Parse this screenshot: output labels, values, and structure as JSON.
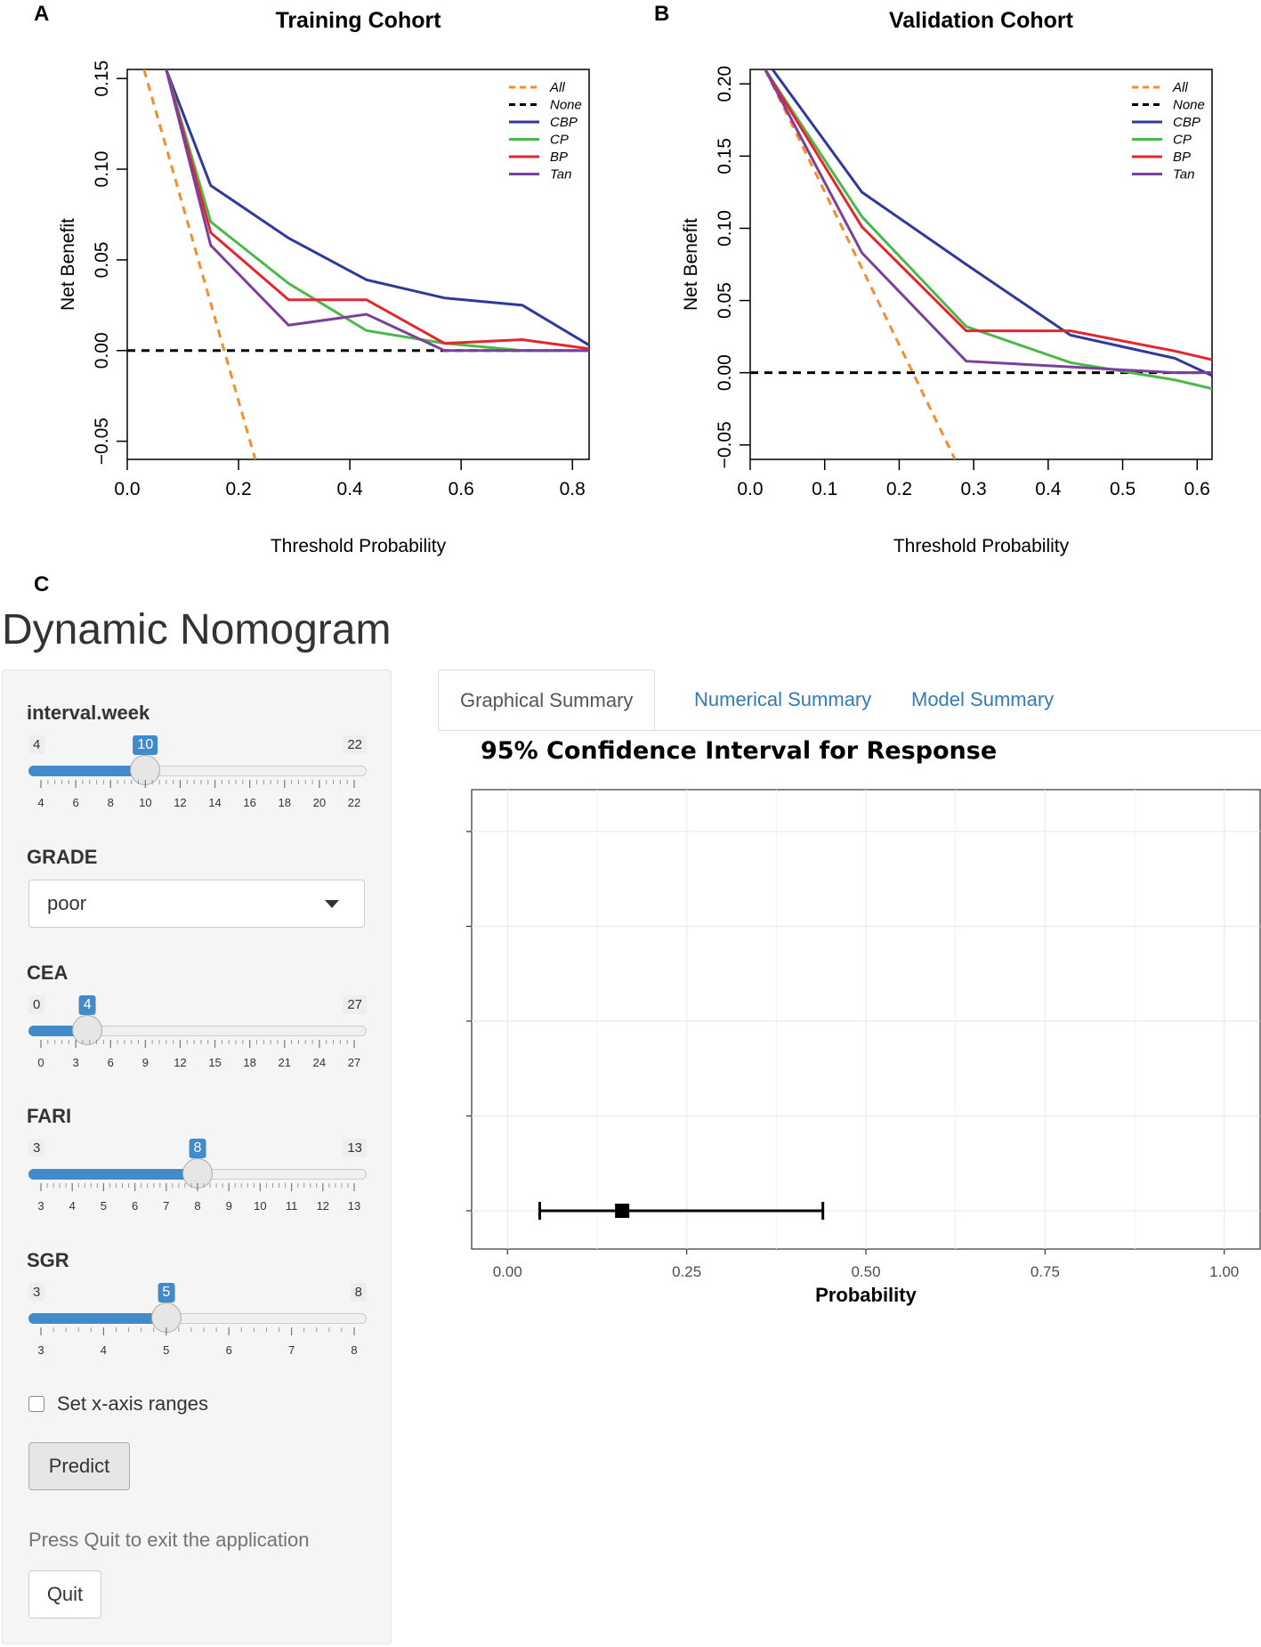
{
  "panel_letters": {
    "a": "A",
    "b": "B",
    "c": "C"
  },
  "dca_legend": [
    "All",
    "None",
    "CBP",
    "CP",
    "BP",
    "Tan"
  ],
  "colors": {
    "All": "#F28E2B",
    "None": "#000000",
    "CBP": "#2E3A9B",
    "CP": "#4CB848",
    "BP": "#E2282E",
    "Tan": "#7B3F9E"
  },
  "chart_data": [
    {
      "type": "line",
      "title": "Training Cohort",
      "xlabel": "Threshold Probability",
      "ylabel": "Net Benefit",
      "xlim": [
        0,
        0.83
      ],
      "ylim": [
        -0.06,
        0.155
      ],
      "xticks": [
        "0.0",
        "0.2",
        "0.4",
        "0.6",
        "0.8"
      ],
      "yticks": [
        "-0.05",
        "0.00",
        "0.05",
        "0.10",
        "0.15"
      ],
      "series": [
        {
          "name": "All",
          "dashed": true,
          "x": [
            0.03,
            0.23
          ],
          "y": [
            0.155,
            -0.06
          ]
        },
        {
          "name": "None",
          "dashed": true,
          "x": [
            0.0,
            0.83
          ],
          "y": [
            0.0,
            0.0
          ]
        },
        {
          "name": "CBP",
          "x": [
            0.07,
            0.15,
            0.29,
            0.43,
            0.57,
            0.71,
            0.83
          ],
          "y": [
            0.155,
            0.091,
            0.062,
            0.039,
            0.029,
            0.025,
            0.003
          ]
        },
        {
          "name": "CP",
          "x": [
            0.07,
            0.15,
            0.29,
            0.43,
            0.57,
            0.71,
            0.83
          ],
          "y": [
            0.155,
            0.071,
            0.037,
            0.011,
            0.004,
            0.0,
            0.0
          ]
        },
        {
          "name": "BP",
          "x": [
            0.07,
            0.15,
            0.29,
            0.43,
            0.57,
            0.71,
            0.83
          ],
          "y": [
            0.155,
            0.065,
            0.028,
            0.028,
            0.004,
            0.006,
            0.001
          ]
        },
        {
          "name": "Tan",
          "x": [
            0.07,
            0.15,
            0.29,
            0.43,
            0.57,
            0.71,
            0.83
          ],
          "y": [
            0.155,
            0.058,
            0.014,
            0.02,
            0.0,
            0.0,
            0.0
          ]
        }
      ]
    },
    {
      "type": "line",
      "title": "Validation Cohort",
      "xlabel": "Threshold Probability",
      "ylabel": "Net Benefit",
      "xlim": [
        0,
        0.62
      ],
      "ylim": [
        -0.06,
        0.21
      ],
      "xticks": [
        "0.0",
        "0.1",
        "0.2",
        "0.3",
        "0.4",
        "0.5",
        "0.6"
      ],
      "yticks": [
        "-0.05",
        "0.00",
        "0.05",
        "0.10",
        "0.15",
        "0.20"
      ],
      "series": [
        {
          "name": "All",
          "dashed": true,
          "x": [
            0.02,
            0.275
          ],
          "y": [
            0.21,
            -0.06
          ]
        },
        {
          "name": "None",
          "dashed": true,
          "x": [
            0.0,
            0.62
          ],
          "y": [
            0.0,
            0.0
          ]
        },
        {
          "name": "CBP",
          "x": [
            0.03,
            0.15,
            0.29,
            0.43,
            0.57,
            0.62
          ],
          "y": [
            0.21,
            0.125,
            0.075,
            0.026,
            0.01,
            -0.002
          ]
        },
        {
          "name": "CP",
          "x": [
            0.02,
            0.15,
            0.29,
            0.43,
            0.57,
            0.62
          ],
          "y": [
            0.21,
            0.108,
            0.032,
            0.007,
            -0.005,
            -0.011
          ]
        },
        {
          "name": "BP",
          "x": [
            0.02,
            0.15,
            0.29,
            0.43,
            0.57,
            0.62
          ],
          "y": [
            0.21,
            0.101,
            0.029,
            0.029,
            0.015,
            0.009
          ]
        },
        {
          "name": "Tan",
          "x": [
            0.02,
            0.15,
            0.29,
            0.43,
            0.57,
            0.62
          ],
          "y": [
            0.21,
            0.083,
            0.008,
            0.004,
            0.0,
            0.0
          ]
        }
      ]
    },
    {
      "type": "scatter",
      "title": "95% Confidence Interval for Response",
      "xlabel": "Probability",
      "xlim": [
        -0.05,
        1.05
      ],
      "xticks": [
        "0.00",
        "0.25",
        "0.50",
        "0.75",
        "1.00"
      ],
      "y_slots": 5,
      "points": [
        {
          "slot": 5,
          "estimate": 0.16,
          "lower": 0.045,
          "upper": 0.44
        }
      ]
    }
  ],
  "app": {
    "title": "Dynamic Nomogram",
    "inputs": {
      "interval_week": {
        "label": "interval.week",
        "min": 4,
        "max": 22,
        "value": 10,
        "ticks": [
          "4",
          "6",
          "8",
          "10",
          "12",
          "14",
          "16",
          "18",
          "20",
          "22"
        ]
      },
      "grade": {
        "label": "GRADE",
        "value": "poor"
      },
      "cea": {
        "label": "CEA",
        "min": 0,
        "max": 27,
        "value": 4,
        "ticks": [
          "0",
          "3",
          "6",
          "9",
          "12",
          "15",
          "18",
          "21",
          "24",
          "27"
        ]
      },
      "fari": {
        "label": "FARI",
        "min": 3,
        "max": 13,
        "value": 8,
        "ticks": [
          "3",
          "4",
          "5",
          "6",
          "7",
          "8",
          "9",
          "10",
          "11",
          "12",
          "13"
        ]
      },
      "sgr": {
        "label": "SGR",
        "min": 3,
        "max": 8,
        "value": 5,
        "ticks": [
          "3",
          "4",
          "5",
          "6",
          "7",
          "8"
        ]
      }
    },
    "checkbox_label": "Set x-axis ranges",
    "predict_label": "Predict",
    "help_text": "Press Quit to exit the application",
    "quit_label": "Quit",
    "tabs": [
      "Graphical Summary",
      "Numerical Summary",
      "Model Summary"
    ]
  }
}
